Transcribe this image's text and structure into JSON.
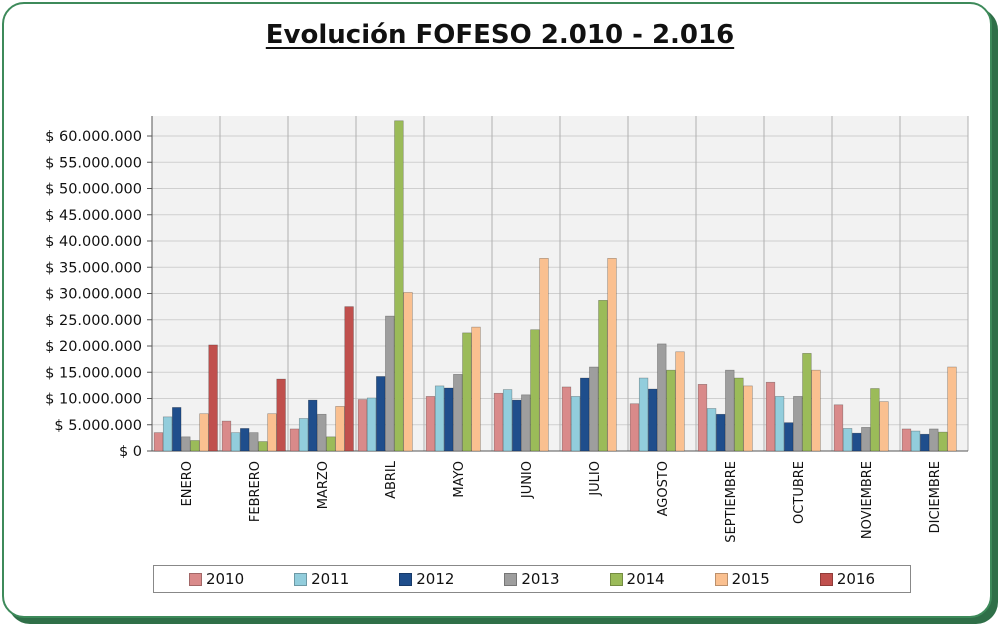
{
  "chart_data": {
    "type": "bar",
    "title": "Evolución FOFESO 2.010 - 2.016",
    "xlabel": "",
    "ylabel": "",
    "ylim": [
      0,
      60000000
    ],
    "yticks": [
      0,
      5000000,
      10000000,
      15000000,
      20000000,
      25000000,
      30000000,
      35000000,
      40000000,
      45000000,
      50000000,
      55000000,
      60000000
    ],
    "ytick_labels": [
      "$ 0",
      "$ 5.000.000",
      "$ 10.000.000",
      "$ 15.000.000",
      "$ 20.000.000",
      "$ 25.000.000",
      "$ 30.000.000",
      "$ 35.000.000",
      "$ 40.000.000",
      "$ 45.000.000",
      "$ 50.000.000",
      "$ 55.000.000",
      "$ 60.000.000"
    ],
    "categories": [
      "ENERO",
      "FEBRERO",
      "MARZO",
      "ABRIL",
      "MAYO",
      "JUNIO",
      "JULIO",
      "AGOSTO",
      "SEPTIEMBRE",
      "OCTUBRE",
      "NOVIEMBRE",
      "DICIEMBRE"
    ],
    "grid": true,
    "legend_position": "bottom",
    "series": [
      {
        "name": "2010",
        "color": "#d98a8a",
        "values": [
          3500000,
          5700000,
          4200000,
          9800000,
          10400000,
          11000000,
          12200000,
          9000000,
          12700000,
          13100000,
          8800000,
          4200000
        ]
      },
      {
        "name": "2011",
        "color": "#92cddc",
        "values": [
          6500000,
          3500000,
          6200000,
          10100000,
          12400000,
          11700000,
          10400000,
          13900000,
          8100000,
          10400000,
          4300000,
          3800000
        ]
      },
      {
        "name": "2012",
        "color": "#1f4e8c",
        "values": [
          8300000,
          4300000,
          9700000,
          14200000,
          12000000,
          9700000,
          13900000,
          11800000,
          7000000,
          5400000,
          3400000,
          3200000
        ]
      },
      {
        "name": "2013",
        "color": "#9e9e9e",
        "values": [
          2700000,
          3500000,
          7000000,
          25700000,
          14600000,
          10700000,
          16000000,
          20400000,
          15400000,
          10400000,
          4500000,
          4200000
        ]
      },
      {
        "name": "2014",
        "color": "#9bbb59",
        "values": [
          2000000,
          1800000,
          2700000,
          62900000,
          22500000,
          23100000,
          28700000,
          15400000,
          13900000,
          18600000,
          11900000,
          3600000
        ]
      },
      {
        "name": "2015",
        "color": "#fac090",
        "values": [
          7100000,
          7100000,
          8500000,
          30200000,
          23600000,
          36700000,
          36700000,
          18900000,
          12400000,
          15400000,
          9400000,
          16000000
        ]
      },
      {
        "name": "2016",
        "color": "#c0504d",
        "values": [
          20200000,
          13700000,
          27500000,
          null,
          null,
          null,
          null,
          null,
          null,
          null,
          null,
          null
        ]
      }
    ]
  }
}
